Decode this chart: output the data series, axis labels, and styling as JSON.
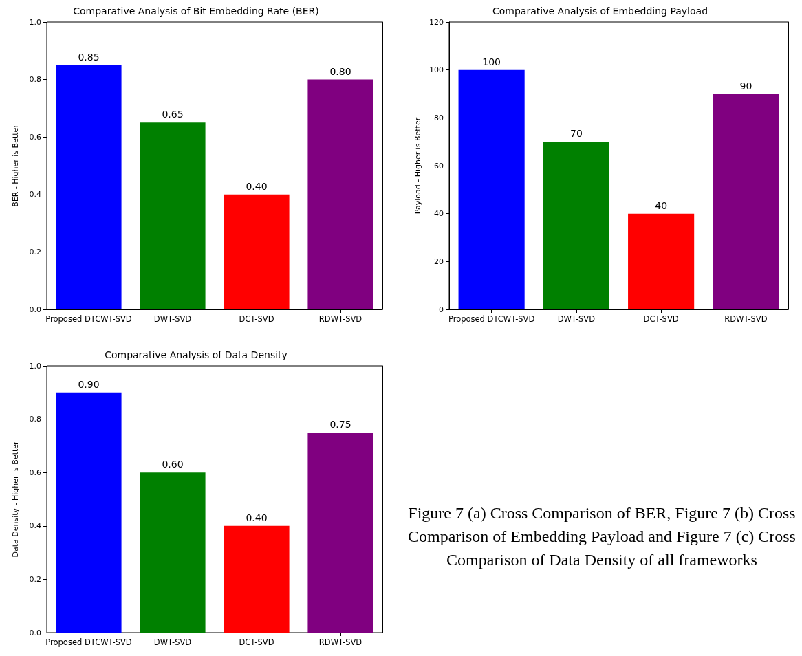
{
  "chart_data": [
    {
      "type": "bar",
      "title": "Comparative Analysis of Bit Embedding Rate (BER)",
      "ylabel": "BER - Higher is Better",
      "categories": [
        "Proposed DTCWT-SVD",
        "DWT-SVD",
        "DCT-SVD",
        "RDWT-SVD"
      ],
      "values": [
        0.85,
        0.65,
        0.4,
        0.8
      ],
      "value_labels": [
        "0.85",
        "0.65",
        "0.40",
        "0.80"
      ],
      "colors": [
        "#0000ff",
        "#008000",
        "#ff0000",
        "#800080"
      ],
      "ylim": [
        0,
        1
      ],
      "yticks": [
        {
          "value": 0,
          "label": "0.0"
        },
        {
          "value": 0.2,
          "label": "0.2"
        },
        {
          "value": 0.4,
          "label": "0.4"
        },
        {
          "value": 0.6,
          "label": "0.6"
        },
        {
          "value": 0.8,
          "label": "0.8"
        },
        {
          "value": 1,
          "label": "1.0"
        }
      ],
      "grid": false
    },
    {
      "type": "bar",
      "title": "Comparative Analysis of Embedding Payload",
      "ylabel": "Payload - Higher is Better",
      "categories": [
        "Proposed DTCWT-SVD",
        "DWT-SVD",
        "DCT-SVD",
        "RDWT-SVD"
      ],
      "values": [
        100,
        70,
        40,
        90
      ],
      "data_labels": true,
      "colors": [
        "#0000ff",
        "#008000",
        "#ff0000",
        "#800080"
      ],
      "ylim": [
        0,
        120
      ],
      "yticks": [
        0,
        20,
        40,
        60,
        80,
        100,
        120
      ],
      "grid": false
    },
    {
      "type": "bar",
      "title": "Comparative Analysis of Data Density",
      "ylabel": "Data Density - Higher is Better",
      "categories": [
        "Proposed DTCWT-SVD",
        "DWT-SVD",
        "DCT-SVD",
        "RDWT-SVD"
      ],
      "values": [
        0.9,
        0.6,
        0.4,
        0.75
      ],
      "value_labels": [
        "0.90",
        "0.60",
        "0.40",
        "0.75"
      ],
      "colors": [
        "#0000ff",
        "#008000",
        "#ff0000",
        "#800080"
      ],
      "ylim": [
        0,
        1
      ],
      "yticks": [
        {
          "value": 0,
          "label": "0.0"
        },
        {
          "value": 0.2,
          "label": "0.2"
        },
        {
          "value": 0.4,
          "label": "0.4"
        },
        {
          "value": 0.6,
          "label": "0.6"
        },
        {
          "value": 0.8,
          "label": "0.8"
        },
        {
          "value": 1,
          "label": "1.0"
        }
      ],
      "grid": false
    },
    {
      "type": "other",
      "annotations": [
        "Figure 7 (a) Cross Comparison of BER, Figure 7 (b) Cross Comparison of Embedding Payload and Figure 7 (c) Cross Comparison of Data Density of all frameworks"
      ]
    }
  ]
}
